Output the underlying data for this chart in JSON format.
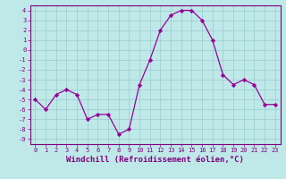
{
  "x": [
    0,
    1,
    2,
    3,
    4,
    5,
    6,
    7,
    8,
    9,
    10,
    11,
    12,
    13,
    14,
    15,
    16,
    17,
    18,
    19,
    20,
    21,
    22,
    23
  ],
  "y": [
    -5.0,
    -6.0,
    -4.5,
    -4.0,
    -4.5,
    -7.0,
    -6.5,
    -6.5,
    -8.5,
    -8.0,
    -3.5,
    -1.0,
    2.0,
    3.5,
    4.0,
    4.0,
    3.0,
    1.0,
    -2.5,
    -3.5,
    -3.0,
    -3.5,
    -5.5,
    -5.5
  ],
  "line_color": "#990099",
  "marker": "D",
  "marker_size": 2.2,
  "bg_color": "#bfe8e8",
  "grid_color": "#99cccc",
  "xlabel": "Windchill (Refroidissement éolien,°C)",
  "ylim": [
    -9.5,
    4.5
  ],
  "xlim": [
    -0.5,
    23.5
  ],
  "yticks": [
    4,
    3,
    2,
    1,
    0,
    -1,
    -2,
    -3,
    -4,
    -5,
    -6,
    -7,
    -8,
    -9
  ],
  "xticks": [
    0,
    1,
    2,
    3,
    4,
    5,
    6,
    7,
    8,
    9,
    10,
    11,
    12,
    13,
    14,
    15,
    16,
    17,
    18,
    19,
    20,
    21,
    22,
    23
  ],
  "tick_color": "#800080",
  "tick_fontsize": 5.0,
  "xlabel_fontsize": 6.5,
  "label_color": "#800080",
  "spine_color": "#800080",
  "linewidth": 0.9
}
